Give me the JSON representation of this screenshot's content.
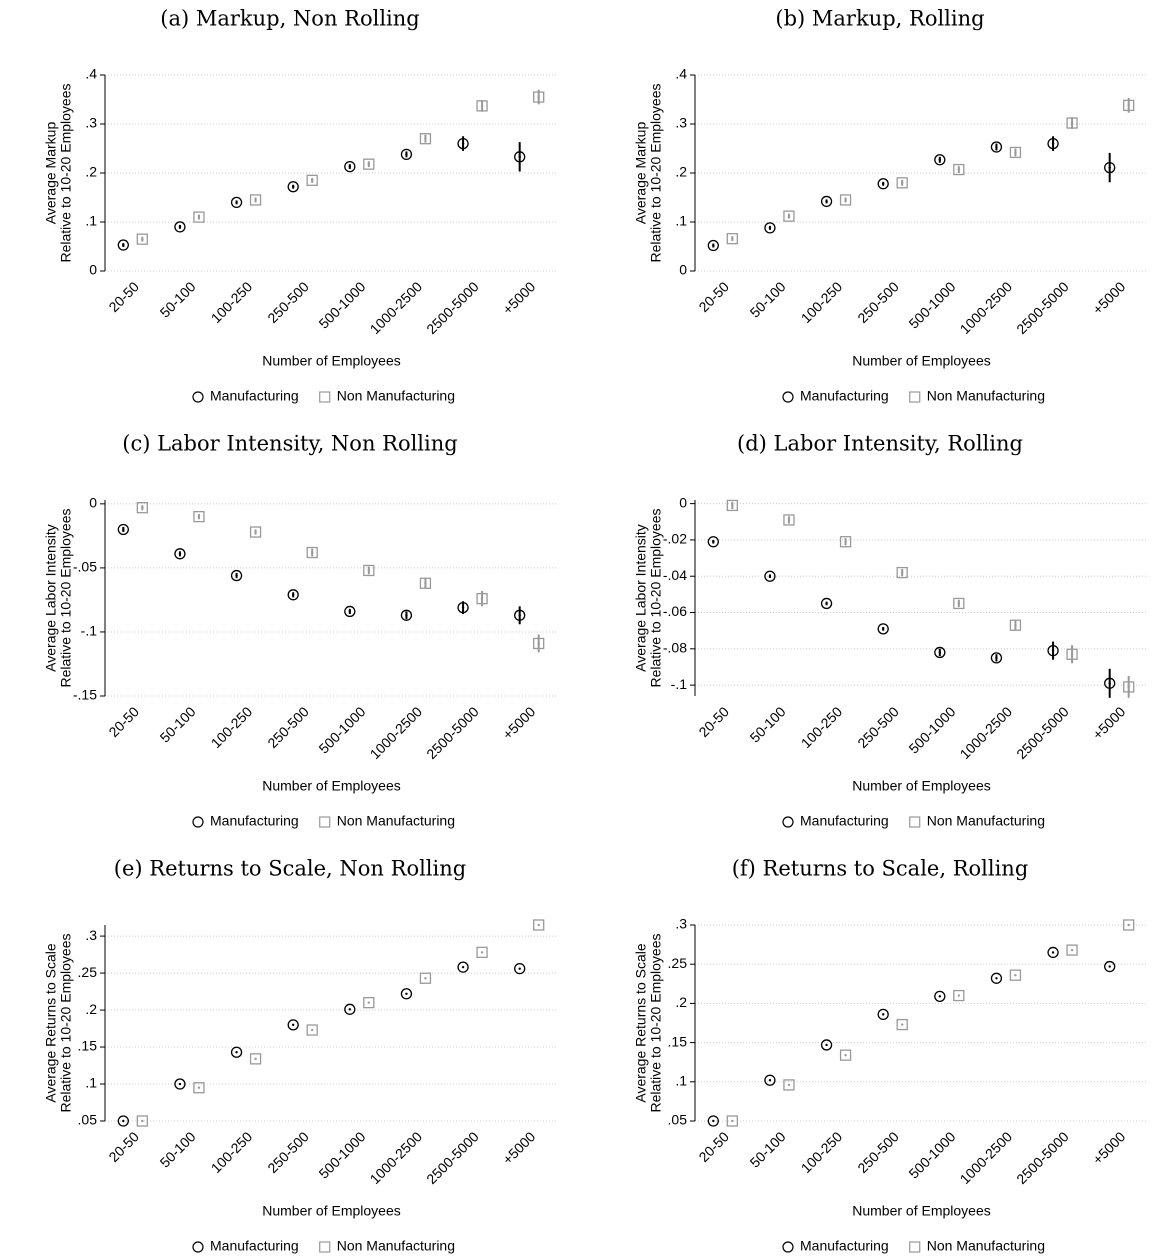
{
  "chart_data": [
    {
      "type": "scatter",
      "title": "(a) Markup, Non Rolling",
      "xlabel": "Number of Employees",
      "ylabel": [
        "Average Markup",
        "Relative to 10-20 Employees"
      ],
      "categories": [
        "20-50",
        "50-100",
        "100-250",
        "250-500",
        "500-1000",
        "1000-2500",
        "2500-5000",
        "+5000"
      ],
      "series": [
        {
          "name": "Manufacturing",
          "color": "#000000",
          "marker": "circle",
          "values": [
            0.053,
            0.09,
            0.14,
            0.172,
            0.213,
            0.238,
            0.26,
            0.233
          ],
          "errors": [
            0.004,
            0.004,
            0.004,
            0.004,
            0.005,
            0.006,
            0.015,
            0.03
          ]
        },
        {
          "name": "Non Manufacturing",
          "color": "#999999",
          "marker": "square",
          "values": [
            0.065,
            0.11,
            0.145,
            0.185,
            0.218,
            0.27,
            0.337,
            0.355
          ],
          "errors": [
            0.005,
            0.005,
            0.005,
            0.005,
            0.006,
            0.008,
            0.012,
            0.015
          ]
        }
      ],
      "ylim": [
        0,
        0.4
      ],
      "yticks": [
        0,
        {
          "value": 0.1,
          "label": ".1"
        },
        {
          "value": 0.2,
          "label": ".2"
        },
        {
          "value": 0.3,
          "label": ".3"
        },
        {
          "value": 0.4,
          "label": ".4"
        }
      ],
      "grid": true
    },
    {
      "type": "scatter",
      "title": "(b) Markup, Rolling",
      "xlabel": "Number of Employees",
      "ylabel": [
        "Average Markup",
        "Relative to 10-20 Employees"
      ],
      "categories": [
        "20-50",
        "50-100",
        "100-250",
        "250-500",
        "500-1000",
        "1000-2500",
        "2500-5000",
        "+5000"
      ],
      "series": [
        {
          "name": "Manufacturing",
          "color": "#000000",
          "marker": "circle",
          "values": [
            0.052,
            0.088,
            0.142,
            0.178,
            0.227,
            0.253,
            0.26,
            0.211
          ],
          "errors": [
            0.004,
            0.004,
            0.004,
            0.004,
            0.006,
            0.007,
            0.015,
            0.03
          ]
        },
        {
          "name": "Non Manufacturing",
          "color": "#999999",
          "marker": "square",
          "values": [
            0.066,
            0.112,
            0.145,
            0.18,
            0.207,
            0.242,
            0.302,
            0.338
          ],
          "errors": [
            0.005,
            0.005,
            0.005,
            0.006,
            0.007,
            0.008,
            0.012,
            0.015
          ]
        }
      ],
      "ylim": [
        0,
        0.4
      ],
      "yticks": [
        0,
        {
          "value": 0.1,
          "label": ".1"
        },
        {
          "value": 0.2,
          "label": ".2"
        },
        {
          "value": 0.3,
          "label": ".3"
        },
        {
          "value": 0.4,
          "label": ".4"
        }
      ],
      "grid": true
    },
    {
      "type": "scatter",
      "title": "(c) Labor Intensity, Non Rolling",
      "xlabel": "Number of Employees",
      "ylabel": [
        "Average Labor Intensity",
        "Relative to 10-20 Employees"
      ],
      "categories": [
        "20-50",
        "50-100",
        "100-250",
        "250-500",
        "500-1000",
        "1000-2500",
        "2500-5000",
        "+5000"
      ],
      "series": [
        {
          "name": "Manufacturing",
          "color": "#000000",
          "marker": "circle",
          "values": [
            -0.02,
            -0.039,
            -0.056,
            -0.071,
            -0.084,
            -0.087,
            -0.081,
            -0.087
          ],
          "errors": [
            0.002,
            0.002,
            0.002,
            0.002,
            0.002,
            0.003,
            0.005,
            0.007
          ]
        },
        {
          "name": "Non Manufacturing",
          "color": "#999999",
          "marker": "square",
          "values": [
            -0.003,
            -0.01,
            -0.022,
            -0.038,
            -0.052,
            -0.062,
            -0.074,
            -0.109
          ],
          "errors": [
            0.002,
            0.002,
            0.002,
            0.003,
            0.003,
            0.004,
            0.006,
            0.007
          ]
        }
      ],
      "ylim": [
        -0.15,
        0.003
      ],
      "yticks": [
        0,
        {
          "value": -0.05,
          "label": "-.05"
        },
        {
          "value": -0.1,
          "label": "-.1"
        },
        {
          "value": -0.15,
          "label": "-.15"
        }
      ],
      "grid": true
    },
    {
      "type": "scatter",
      "title": "(d) Labor Intensity, Rolling",
      "xlabel": "Number of Employees",
      "ylabel": [
        "Average Labor Intensity",
        "Relative to 10-20 Employees"
      ],
      "categories": [
        "20-50",
        "50-100",
        "100-250",
        "250-500",
        "500-1000",
        "1000-2500",
        "2500-5000",
        "+5000"
      ],
      "series": [
        {
          "name": "Manufacturing",
          "color": "#000000",
          "marker": "circle",
          "values": [
            -0.021,
            -0.04,
            -0.055,
            -0.069,
            -0.082,
            -0.085,
            -0.081,
            -0.099
          ],
          "errors": [
            0.001,
            0.001,
            0.001,
            0.001,
            0.002,
            0.002,
            0.005,
            0.008
          ]
        },
        {
          "name": "Non Manufacturing",
          "color": "#999999",
          "marker": "square",
          "values": [
            -0.001,
            -0.009,
            -0.021,
            -0.038,
            -0.055,
            -0.067,
            -0.083,
            -0.101
          ],
          "errors": [
            0.002,
            0.002,
            0.002,
            0.002,
            0.002,
            0.003,
            0.005,
            0.006
          ]
        }
      ],
      "ylim": [
        -0.106,
        0.002
      ],
      "yticks": [
        0,
        {
          "value": -0.02,
          "label": "-.02"
        },
        {
          "value": -0.04,
          "label": "-.04"
        },
        {
          "value": -0.06,
          "label": "-.06"
        },
        {
          "value": -0.08,
          "label": "-.08"
        },
        {
          "value": -0.1,
          "label": "-.1"
        }
      ],
      "grid": true
    },
    {
      "type": "scatter",
      "title": "(e) Returns to Scale, Non Rolling",
      "xlabel": "Number of Employees",
      "ylabel": [
        "Average Returns to Scale",
        "Relative to 10-20 Employees"
      ],
      "categories": [
        "20-50",
        "50-100",
        "100-250",
        "250-500",
        "500-1000",
        "1000-2500",
        "2500-5000",
        "+5000"
      ],
      "series": [
        {
          "name": "Manufacturing",
          "color": "#000000",
          "marker": "circle",
          "values": [
            0.05,
            0.1,
            0.143,
            0.18,
            0.201,
            0.222,
            0.258,
            0.256
          ]
        },
        {
          "name": "Non Manufacturing",
          "color": "#999999",
          "marker": "square",
          "values": [
            0.05,
            0.095,
            0.134,
            0.173,
            0.21,
            0.243,
            0.278,
            0.315
          ]
        }
      ],
      "ylim": [
        0.05,
        0.315
      ],
      "yticks": [
        {
          "value": 0.05,
          "label": ".05"
        },
        {
          "value": 0.1,
          "label": ".1"
        },
        {
          "value": 0.15,
          "label": ".15"
        },
        {
          "value": 0.2,
          "label": ".2"
        },
        {
          "value": 0.25,
          "label": ".25"
        },
        {
          "value": 0.3,
          "label": ".3"
        }
      ],
      "grid": true
    },
    {
      "type": "scatter",
      "title": "(f) Returns to Scale, Rolling",
      "xlabel": "Number of Employees",
      "ylabel": [
        "Average Returns to Scale",
        "Relative to 10-20 Employees"
      ],
      "categories": [
        "20-50",
        "50-100",
        "100-250",
        "250-500",
        "500-1000",
        "1000-2500",
        "2500-5000",
        "+5000"
      ],
      "series": [
        {
          "name": "Manufacturing",
          "color": "#000000",
          "marker": "circle",
          "values": [
            0.05,
            0.102,
            0.147,
            0.186,
            0.209,
            0.232,
            0.265,
            0.247
          ]
        },
        {
          "name": "Non Manufacturing",
          "color": "#999999",
          "marker": "square",
          "values": [
            0.05,
            0.096,
            0.134,
            0.173,
            0.21,
            0.236,
            0.268,
            0.3
          ]
        }
      ],
      "ylim": [
        0.05,
        0.3
      ],
      "yticks": [
        {
          "value": 0.05,
          "label": ".05"
        },
        {
          "value": 0.1,
          "label": ".1"
        },
        {
          "value": 0.15,
          "label": ".15"
        },
        {
          "value": 0.2,
          "label": ".2"
        },
        {
          "value": 0.25,
          "label": ".25"
        },
        {
          "value": 0.3,
          "label": ".3"
        }
      ],
      "grid": true
    }
  ]
}
